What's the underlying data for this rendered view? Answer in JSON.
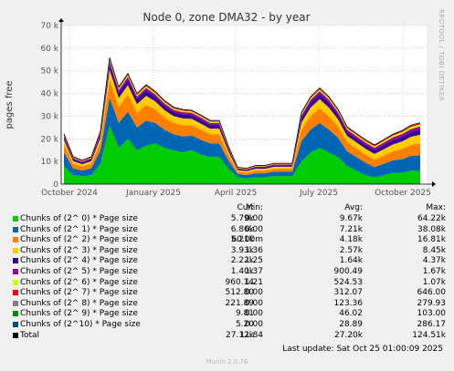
{
  "title": "Node 0, zone DMA32 - by year",
  "side_label": "RRDTOOL / TOBI OETIKER",
  "footer": "Munin 2.0.76",
  "last_update": "Last update: Sat Oct 25 01:00:09 2025",
  "columns": {
    "cur": "Cur:",
    "min": "Min:",
    "avg": "Avg:",
    "max": "Max:"
  },
  "chart_data": {
    "type": "area",
    "title": "Node 0, zone DMA32 - by year",
    "ylabel": "pages free",
    "xlabel": "",
    "ylim": [
      0,
      70000
    ],
    "y_ticks": [
      "0",
      "10 k",
      "20 k",
      "30 k",
      "40 k",
      "50 k",
      "60 k",
      "70 k"
    ],
    "x_ticks": [
      "October 2024",
      "January 2025",
      "April 2025",
      "July 2025",
      "October 2025"
    ],
    "grid": true,
    "stacked": true,
    "x_samples": [
      "2024-09-25",
      "2024-10-05",
      "2024-10-15",
      "2024-10-25",
      "2024-11-04",
      "2024-11-14",
      "2024-11-24",
      "2024-12-04",
      "2024-12-14",
      "2024-12-24",
      "2025-01-03",
      "2025-01-13",
      "2025-01-23",
      "2025-02-02",
      "2025-02-12",
      "2025-02-22",
      "2025-03-04",
      "2025-03-14",
      "2025-03-24",
      "2025-04-03",
      "2025-04-13",
      "2025-04-23",
      "2025-05-03",
      "2025-05-13",
      "2025-05-23",
      "2025-06-02",
      "2025-06-12",
      "2025-06-22",
      "2025-07-02",
      "2025-07-12",
      "2025-07-22",
      "2025-08-01",
      "2025-08-11",
      "2025-08-21",
      "2025-08-31",
      "2025-09-10",
      "2025-09-20",
      "2025-09-30",
      "2025-10-10",
      "2025-10-20"
    ],
    "series": [
      {
        "name": "Chunks of (2^ 0) * Page size",
        "color": "#00cc00",
        "cur": "5.79k",
        "min": "0.00",
        "avg": "9.67k",
        "max": "64.22k",
        "values": [
          8000,
          4000,
          3500,
          4000,
          9000,
          26000,
          16000,
          20000,
          15000,
          17000,
          18000,
          16000,
          15000,
          14000,
          15000,
          13000,
          12000,
          12000,
          7000,
          3000,
          2500,
          3000,
          3000,
          3500,
          3500,
          3500,
          10000,
          14000,
          16000,
          14000,
          12000,
          8000,
          6000,
          4000,
          3000,
          4000,
          5000,
          5000,
          6000,
          5800
        ]
      },
      {
        "name": "Chunks of (2^ 1) * Page size",
        "color": "#0066b3",
        "cur": "6.86k",
        "min": "0.00",
        "avg": "7.21k",
        "max": "38.08k",
        "values": [
          6000,
          3000,
          2500,
          3000,
          6000,
          12000,
          11000,
          12000,
          10000,
          11000,
          9000,
          8000,
          7000,
          7000,
          6500,
          6500,
          6000,
          6000,
          3500,
          1500,
          1500,
          1800,
          1800,
          2000,
          2000,
          2000,
          9000,
          10000,
          11000,
          10000,
          8500,
          6500,
          6000,
          5500,
          4500,
          5000,
          5500,
          6000,
          6500,
          6860
        ]
      },
      {
        "name": "Chunks of (2^ 2) * Page size",
        "color": "#ff8000",
        "cur": "5.21k",
        "min": "60.00m",
        "avg": "4.18k",
        "max": "16.81k",
        "values": [
          3500,
          2000,
          1800,
          2000,
          3500,
          8000,
          7000,
          7500,
          6500,
          7000,
          6000,
          5500,
          5000,
          5000,
          4500,
          4500,
          4000,
          4000,
          2500,
          1000,
          1000,
          1200,
          1200,
          1300,
          1300,
          1300,
          5000,
          6000,
          6500,
          6000,
          5000,
          4000,
          3800,
          3600,
          3300,
          3600,
          4000,
          4500,
          4800,
          5210
        ]
      },
      {
        "name": "Chunks of (2^ 3) * Page size",
        "color": "#ffcc00",
        "cur": "3.93k",
        "min": "1.36",
        "avg": "2.57k",
        "max": "8.45k",
        "values": [
          2000,
          1200,
          1000,
          1200,
          2000,
          4500,
          4000,
          4200,
          3800,
          4000,
          3500,
          3200,
          3000,
          3000,
          2800,
          2700,
          2500,
          2500,
          1500,
          700,
          700,
          800,
          800,
          900,
          900,
          900,
          3200,
          3800,
          4000,
          3800,
          3200,
          2800,
          2700,
          2600,
          2500,
          2800,
          3000,
          3300,
          3600,
          3930
        ]
      },
      {
        "name": "Chunks of (2^ 4) * Page size",
        "color": "#330099",
        "cur": "2.22k",
        "min": "1.25",
        "avg": "1.64k",
        "max": "4.37k",
        "values": [
          1200,
          800,
          700,
          800,
          1300,
          2500,
          2300,
          2400,
          2200,
          2300,
          2000,
          1900,
          1800,
          1800,
          1700,
          1700,
          1600,
          1600,
          1000,
          500,
          500,
          600,
          600,
          600,
          600,
          600,
          2000,
          2200,
          2300,
          2200,
          2000,
          1800,
          1700,
          1700,
          1700,
          1800,
          1900,
          2000,
          2100,
          2220
        ]
      },
      {
        "name": "Chunks of (2^ 5) * Page size",
        "color": "#990099",
        "cur": "1.40k",
        "min": "1.37",
        "avg": "900.49",
        "max": "1.67k",
        "values": [
          700,
          500,
          450,
          500,
          800,
          1300,
          1200,
          1250,
          1150,
          1200,
          1100,
          1050,
          1000,
          1000,
          950,
          950,
          900,
          900,
          600,
          350,
          350,
          400,
          400,
          400,
          400,
          400,
          1100,
          1200,
          1250,
          1200,
          1100,
          1000,
          1000,
          1000,
          1050,
          1100,
          1200,
          1300,
          1350,
          1400
        ]
      },
      {
        "name": "Chunks of (2^ 6) * Page size",
        "color": "#ccff00",
        "cur": "960.14",
        "min": "1.21",
        "avg": "524.53",
        "max": "1.07k",
        "values": [
          400,
          300,
          280,
          300,
          450,
          750,
          700,
          720,
          680,
          700,
          650,
          620,
          600,
          600,
          570,
          570,
          550,
          550,
          380,
          220,
          220,
          250,
          250,
          250,
          250,
          250,
          650,
          700,
          720,
          700,
          650,
          600,
          600,
          620,
          650,
          700,
          780,
          850,
          900,
          960
        ]
      },
      {
        "name": "Chunks of (2^ 7) * Page size",
        "color": "#ff0000",
        "cur": "512.80",
        "min": "0.00",
        "avg": "312.07",
        "max": "646.00",
        "values": [
          250,
          180,
          170,
          180,
          270,
          440,
          420,
          430,
          410,
          420,
          390,
          370,
          360,
          360,
          340,
          340,
          330,
          330,
          230,
          130,
          130,
          150,
          150,
          150,
          150,
          150,
          380,
          420,
          430,
          420,
          390,
          360,
          360,
          370,
          390,
          420,
          450,
          480,
          500,
          513
        ]
      },
      {
        "name": "Chunks of (2^ 8) * Page size",
        "color": "#808080",
        "cur": "221.89",
        "min": "0.00",
        "avg": "123.36",
        "max": "279.93",
        "values": [
          100,
          70,
          65,
          70,
          110,
          180,
          170,
          175,
          165,
          170,
          160,
          150,
          145,
          145,
          140,
          140,
          135,
          135,
          95,
          55,
          55,
          60,
          60,
          60,
          60,
          60,
          150,
          170,
          175,
          170,
          160,
          150,
          150,
          155,
          165,
          180,
          195,
          205,
          215,
          222
        ]
      },
      {
        "name": "Chunks of (2^ 9) * Page size",
        "color": "#008f00",
        "cur": "9.81",
        "min": "0.00",
        "avg": "46.02",
        "max": "103.00",
        "values": [
          40,
          30,
          28,
          30,
          45,
          75,
          70,
          72,
          68,
          70,
          65,
          62,
          60,
          60,
          57,
          57,
          55,
          55,
          38,
          22,
          22,
          25,
          25,
          25,
          25,
          25,
          60,
          70,
          72,
          70,
          65,
          60,
          55,
          50,
          40,
          30,
          20,
          15,
          12,
          10
        ]
      },
      {
        "name": "Chunks of (2^10) * Page size",
        "color": "#00487d",
        "cur": "5.20",
        "min": "0.00",
        "avg": "28.89",
        "max": "286.17",
        "values": [
          30,
          20,
          18,
          20,
          30,
          45,
          40,
          42,
          40,
          40,
          38,
          36,
          35,
          35,
          33,
          33,
          32,
          32,
          22,
          12,
          12,
          14,
          14,
          14,
          14,
          14,
          35,
          40,
          42,
          40,
          38,
          35,
          32,
          28,
          22,
          15,
          10,
          8,
          6,
          5
        ]
      },
      {
        "name": "Total",
        "color": "#000000",
        "cur": "27.12k",
        "min": "11.84",
        "avg": "27.20k",
        "max": "124.51k",
        "line_only": true,
        "values": []
      }
    ]
  }
}
